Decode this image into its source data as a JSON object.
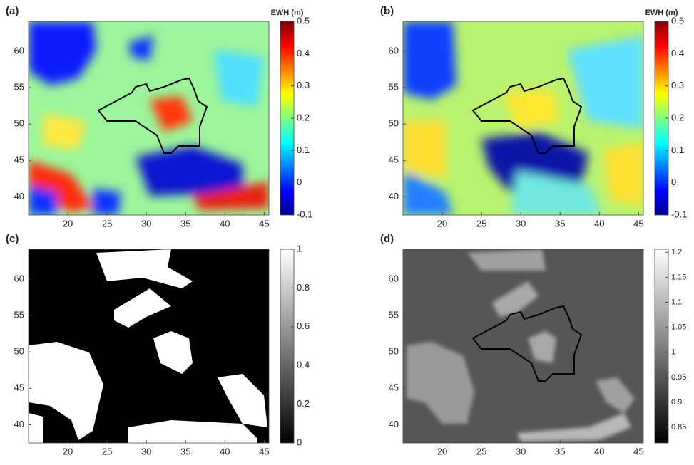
{
  "chart_data": [
    {
      "type": "heatmap",
      "panel_label": "(a)",
      "colorbar_label": "EWH (m)",
      "colormap": "jet",
      "xlim": [
        15,
        45.6
      ],
      "ylim": [
        37.5,
        64.1
      ],
      "xticks": [
        20,
        25,
        30,
        35,
        40,
        45
      ],
      "yticks": [
        40,
        45,
        50,
        55,
        60
      ],
      "clim": [
        -0.1,
        0.5
      ],
      "cticks": [
        -0.1,
        0,
        0.1,
        0.2,
        0.3,
        0.4,
        0.5
      ]
    },
    {
      "type": "heatmap",
      "panel_label": "(b)",
      "colorbar_label": "EWH (m)",
      "colormap": "jet",
      "xlim": [
        15,
        45.6
      ],
      "ylim": [
        37.5,
        64.1
      ],
      "xticks": [
        20,
        25,
        30,
        35,
        40,
        45
      ],
      "yticks": [
        40,
        45,
        50,
        55,
        60
      ],
      "clim": [
        -0.1,
        0.5
      ],
      "cticks": [
        -0.1,
        0,
        0.1,
        0.2,
        0.3,
        0.4,
        0.5
      ]
    },
    {
      "type": "heatmap",
      "panel_label": "(c)",
      "colormap": "gray",
      "xlim": [
        15,
        45.6
      ],
      "ylim": [
        37.5,
        64.1
      ],
      "xticks": [
        20,
        25,
        30,
        35,
        40,
        45
      ],
      "yticks": [
        40,
        45,
        50,
        55,
        60
      ],
      "clim": [
        0,
        1
      ],
      "cticks": [
        0,
        0.2,
        0.4,
        0.6,
        0.8,
        1
      ]
    },
    {
      "type": "heatmap",
      "panel_label": "(d)",
      "colormap": "gray",
      "xlim": [
        15,
        45.6
      ],
      "ylim": [
        37.5,
        64.1
      ],
      "xticks": [
        20,
        25,
        30,
        35,
        40,
        45
      ],
      "yticks": [
        40,
        45,
        50,
        55,
        60
      ],
      "clim": [
        0.819,
        1.206
      ],
      "cticks": [
        0.85,
        0.9,
        0.95,
        1,
        1.05,
        1.1,
        1.15,
        1.2
      ]
    }
  ]
}
